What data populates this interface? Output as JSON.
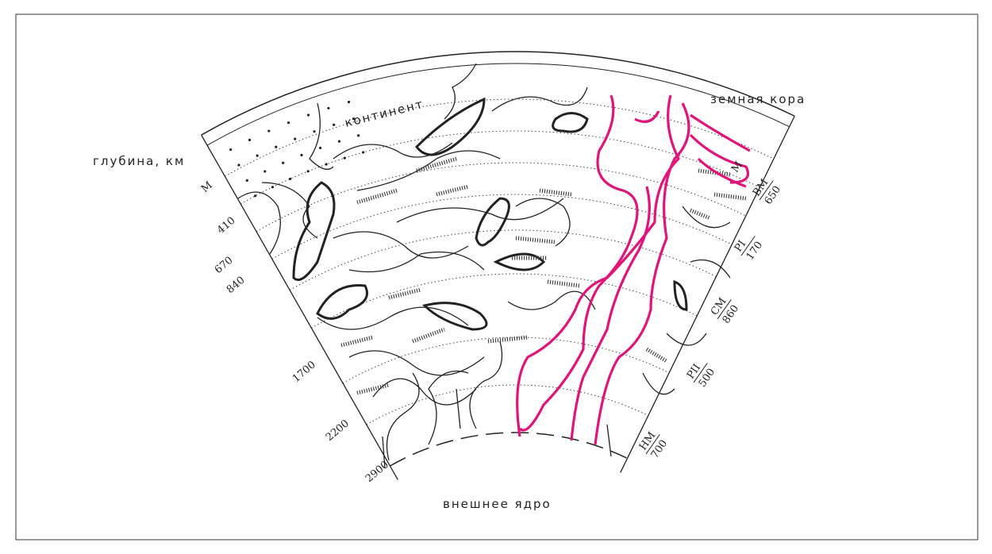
{
  "labels": {
    "continent": "континент",
    "crust": "земная кора",
    "depth_axis": "глубина, км",
    "outer_core": "внешнее ядро"
  },
  "depths": [
    "М",
    "410",
    "670",
    "840",
    "1700",
    "2200",
    "2900"
  ],
  "layers": [
    {
      "name": "М"
    },
    {
      "name": "ВМ",
      "value": "650"
    },
    {
      "name": "PI",
      "value": "170"
    },
    {
      "name": "СМ",
      "value": "860"
    },
    {
      "name": "PII",
      "value": "500"
    },
    {
      "name": "НМ",
      "value": "700"
    }
  ]
}
